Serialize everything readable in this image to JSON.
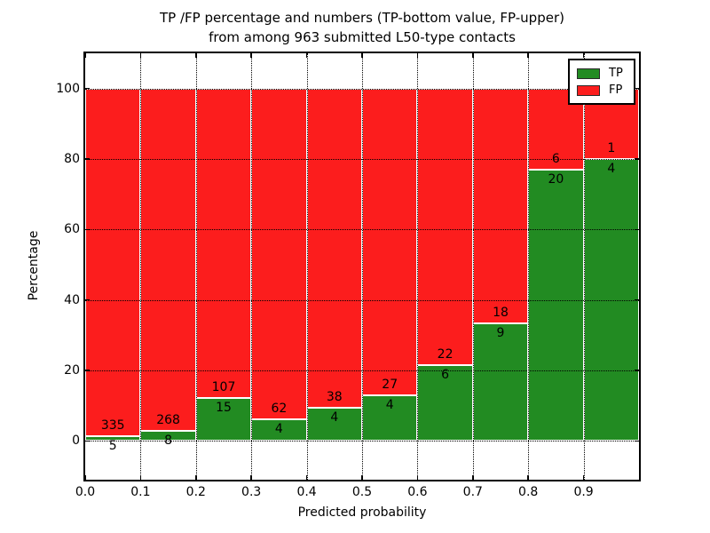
{
  "title": {
    "line1": "TP /FP percentage and numbers (TP-bottom value, FP-upper)",
    "line2": "from among 963 submitted L50-type contacts"
  },
  "legend": {
    "items": [
      {
        "label": "TP",
        "color": "#228b22"
      },
      {
        "label": "FP",
        "color": "#fc1d1d"
      }
    ]
  },
  "chart_data": {
    "type": "bar",
    "stacked": true,
    "title": "TP /FP percentage and numbers (TP-bottom value, FP-upper)\nfrom among 963 submitted L50-type contacts",
    "xlabel": "Predicted probability",
    "ylabel": "Percentage",
    "xlim": [
      0.0,
      1.0
    ],
    "ylim": [
      -11,
      110
    ],
    "bin_width": 0.1,
    "bin_starts": [
      0.0,
      0.1,
      0.2,
      0.3,
      0.4,
      0.5,
      0.6,
      0.7,
      0.8,
      0.9
    ],
    "x_tick_labels": [
      "0.0",
      "0.1",
      "0.2",
      "0.3",
      "0.4",
      "0.5",
      "0.6",
      "0.7",
      "0.8",
      "0.9"
    ],
    "y_tick_values": [
      0,
      20,
      40,
      60,
      80,
      100
    ],
    "grid": true,
    "grid_style": "dotted",
    "legend_position": "upper right",
    "total_contacts": 963,
    "series": [
      {
        "name": "TP",
        "color": "#228b22",
        "counts": [
          5,
          8,
          15,
          4,
          4,
          4,
          6,
          9,
          20,
          4
        ],
        "percent": [
          1.47,
          2.9,
          12.3,
          6.06,
          9.52,
          12.9,
          21.43,
          33.33,
          76.92,
          80.0
        ]
      },
      {
        "name": "FP",
        "color": "#fc1d1d",
        "counts": [
          335,
          268,
          107,
          62,
          38,
          27,
          22,
          18,
          6,
          1
        ],
        "percent": [
          98.53,
          97.1,
          87.7,
          93.94,
          90.48,
          87.1,
          78.57,
          66.67,
          23.08,
          20.0
        ]
      }
    ]
  }
}
